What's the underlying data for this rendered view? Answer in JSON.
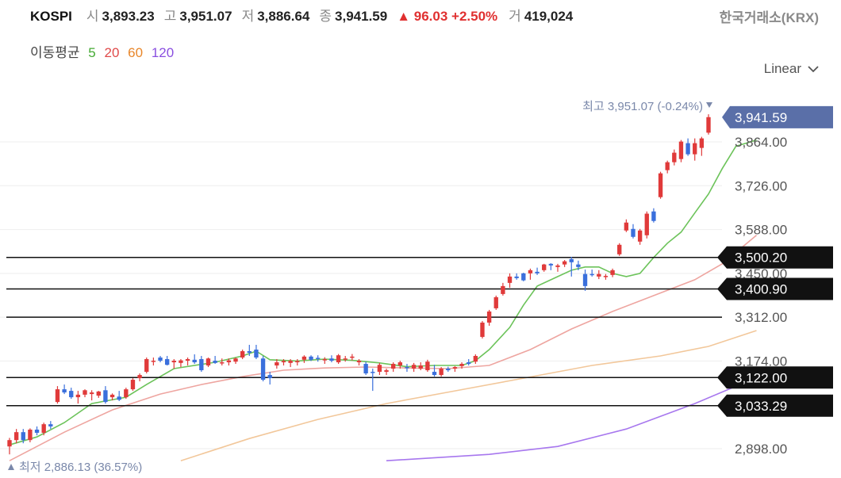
{
  "header": {
    "symbol": "KOSPI",
    "open_label": "시",
    "open": "3,893.23",
    "high_label": "고",
    "high": "3,951.07",
    "low_label": "저",
    "low": "3,886.64",
    "close_label": "종",
    "close": "3,941.59",
    "change": "▲ 96.03 +2.50%",
    "volume_label": "거",
    "volume": "419,024",
    "source": "한국거래소(KRX)"
  },
  "ma_legend": {
    "title": "이동평균",
    "items": [
      {
        "label": "5",
        "color": "#44aa33"
      },
      {
        "label": "20",
        "color": "#e04a4a"
      },
      {
        "label": "60",
        "color": "#e8862a"
      },
      {
        "label": "120",
        "color": "#8a4fe0"
      }
    ]
  },
  "scale_selector": {
    "value": "Linear",
    "icon": "chevron-down-icon"
  },
  "colors": {
    "up": "#e03a3a",
    "down": "#3a6fdc",
    "tag_bg": "#111111",
    "price_tag_bg": "#5a6fa8"
  },
  "chart_data": {
    "type": "candlestick",
    "y_axis": {
      "ticks": [
        "3,864.00",
        "3,726.00",
        "3,588.00",
        "3,450.00",
        "3,312.00",
        "3,174.00",
        "2,898.00"
      ],
      "range": [
        2860,
        3990
      ]
    },
    "current_price": {
      "value": 3941.59,
      "label": "3,941.59"
    },
    "high_annotation": "최고 3,951.07 (-0.24%)",
    "low_annotation": "최저 2,886.13 (36.57%)",
    "horizontal_lines": [
      {
        "value": 3500.2,
        "label": "3,500.20",
        "tag": true
      },
      {
        "value": 3400.9,
        "label": "3,400.90",
        "tag": true
      },
      {
        "value": 3312.0,
        "label": "",
        "tag": false
      },
      {
        "value": 3122.0,
        "label": "3,122.00",
        "tag": true
      },
      {
        "value": 3033.29,
        "label": "3,033.29",
        "tag": true
      }
    ],
    "candles": [
      [
        2905,
        2932,
        2880,
        2925
      ],
      [
        2925,
        2960,
        2915,
        2950
      ],
      [
        2950,
        2960,
        2915,
        2925
      ],
      [
        2925,
        2962,
        2918,
        2958
      ],
      [
        2958,
        2968,
        2940,
        2948
      ],
      [
        2948,
        2980,
        2940,
        2975
      ],
      [
        2975,
        2985,
        2960,
        2968
      ],
      [
        3045,
        3095,
        3040,
        3085
      ],
      [
        3085,
        3100,
        3070,
        3075
      ],
      [
        3080,
        3090,
        3055,
        3060
      ],
      [
        3060,
        3080,
        3040,
        3068
      ],
      [
        3068,
        3085,
        3060,
        3082
      ],
      [
        3070,
        3082,
        3050,
        3075
      ],
      [
        3065,
        3080,
        3058,
        3078
      ],
      [
        3082,
        3095,
        3040,
        3045
      ],
      [
        3060,
        3072,
        3050,
        3068
      ],
      [
        3062,
        3080,
        3048,
        3052
      ],
      [
        3060,
        3090,
        3055,
        3085
      ],
      [
        3085,
        3120,
        3080,
        3115
      ],
      [
        3120,
        3135,
        3110,
        3130
      ],
      [
        3140,
        3185,
        3135,
        3180
      ],
      [
        3175,
        3185,
        3160,
        3175
      ],
      [
        3185,
        3190,
        3170,
        3175
      ],
      [
        3180,
        3190,
        3160,
        3162
      ],
      [
        3170,
        3180,
        3150,
        3175
      ],
      [
        3168,
        3180,
        3155,
        3176
      ],
      [
        3175,
        3185,
        3160,
        3180
      ],
      [
        3178,
        3195,
        3165,
        3170
      ],
      [
        3180,
        3190,
        3140,
        3145
      ],
      [
        3160,
        3185,
        3155,
        3182
      ],
      [
        3175,
        3190,
        3165,
        3168
      ],
      [
        3170,
        3182,
        3160,
        3170
      ],
      [
        3170,
        3182,
        3160,
        3176
      ],
      [
        3172,
        3185,
        3165,
        3182
      ],
      [
        3185,
        3210,
        3180,
        3205
      ],
      [
        3205,
        3225,
        3190,
        3200
      ],
      [
        3210,
        3225,
        3180,
        3185
      ],
      [
        3182,
        3190,
        3110,
        3115
      ],
      [
        3130,
        3140,
        3100,
        3120
      ],
      [
        3160,
        3180,
        3150,
        3170
      ],
      [
        3170,
        3180,
        3160,
        3174
      ],
      [
        3168,
        3180,
        3155,
        3175
      ],
      [
        3170,
        3180,
        3160,
        3174
      ],
      [
        3178,
        3192,
        3168,
        3188
      ],
      [
        3188,
        3192,
        3174,
        3178
      ],
      [
        3184,
        3192,
        3172,
        3182
      ],
      [
        3176,
        3186,
        3165,
        3180
      ],
      [
        3182,
        3192,
        3170,
        3175
      ],
      [
        3170,
        3196,
        3165,
        3192
      ],
      [
        3180,
        3190,
        3172,
        3182
      ],
      [
        3184,
        3196,
        3176,
        3188
      ],
      [
        3170,
        3180,
        3160,
        3175
      ],
      [
        3165,
        3172,
        3130,
        3135
      ],
      [
        3140,
        3150,
        3080,
        3138
      ],
      [
        3140,
        3168,
        3130,
        3162
      ],
      [
        3140,
        3150,
        3130,
        3145
      ],
      [
        3150,
        3170,
        3140,
        3165
      ],
      [
        3160,
        3175,
        3150,
        3170
      ],
      [
        3155,
        3165,
        3140,
        3152
      ],
      [
        3150,
        3168,
        3140,
        3162
      ],
      [
        3150,
        3170,
        3145,
        3160
      ],
      [
        3145,
        3178,
        3140,
        3172
      ],
      [
        3140,
        3162,
        3125,
        3130
      ],
      [
        3130,
        3155,
        3125,
        3150
      ],
      [
        3150,
        3156,
        3140,
        3145
      ],
      [
        3150,
        3158,
        3140,
        3155
      ],
      [
        3158,
        3170,
        3150,
        3165
      ],
      [
        3170,
        3180,
        3160,
        3165
      ],
      [
        3172,
        3195,
        3165,
        3190
      ],
      [
        3250,
        3300,
        3245,
        3295
      ],
      [
        3295,
        3335,
        3285,
        3330
      ],
      [
        3340,
        3380,
        3335,
        3375
      ],
      [
        3385,
        3420,
        3380,
        3410
      ],
      [
        3420,
        3450,
        3405,
        3440
      ],
      [
        3440,
        3450,
        3430,
        3435
      ],
      [
        3450,
        3452,
        3425,
        3428
      ],
      [
        3450,
        3465,
        3430,
        3460
      ],
      [
        3455,
        3468,
        3445,
        3450
      ],
      [
        3460,
        3480,
        3455,
        3478
      ],
      [
        3480,
        3482,
        3460,
        3475
      ],
      [
        3470,
        3480,
        3455,
        3475
      ],
      [
        3478,
        3492,
        3470,
        3488
      ],
      [
        3495,
        3502,
        3440,
        3485
      ],
      [
        3478,
        3490,
        3460,
        3470
      ],
      [
        3448,
        3462,
        3395,
        3410
      ],
      [
        3448,
        3462,
        3440,
        3445
      ],
      [
        3440,
        3460,
        3432,
        3448
      ],
      [
        3440,
        3448,
        3430,
        3442
      ],
      [
        3445,
        3465,
        3438,
        3460
      ],
      [
        3510,
        3545,
        3505,
        3540
      ],
      [
        3585,
        3620,
        3580,
        3610
      ],
      [
        3590,
        3605,
        3560,
        3565
      ],
      [
        3550,
        3590,
        3540,
        3585
      ],
      [
        3570,
        3645,
        3560,
        3638
      ],
      [
        3645,
        3655,
        3610,
        3615
      ],
      [
        3690,
        3770,
        3685,
        3765
      ],
      [
        3775,
        3805,
        3765,
        3800
      ],
      [
        3800,
        3840,
        3790,
        3830
      ],
      [
        3810,
        3870,
        3800,
        3865
      ],
      [
        3860,
        3875,
        3820,
        3825
      ],
      [
        3825,
        3875,
        3805,
        3860
      ],
      [
        3845,
        3880,
        3820,
        3875
      ],
      [
        3893,
        3951,
        3887,
        3942
      ]
    ],
    "ma5": [
      [
        0,
        2910
      ],
      [
        4,
        2935
      ],
      [
        8,
        2980
      ],
      [
        12,
        3040
      ],
      [
        17,
        3060
      ],
      [
        20,
        3100
      ],
      [
        24,
        3150
      ],
      [
        30,
        3170
      ],
      [
        34,
        3190
      ],
      [
        36,
        3205
      ],
      [
        38,
        3178
      ],
      [
        42,
        3174
      ],
      [
        46,
        3180
      ],
      [
        50,
        3176
      ],
      [
        54,
        3168
      ],
      [
        58,
        3156
      ],
      [
        62,
        3160
      ],
      [
        66,
        3160
      ],
      [
        68,
        3175
      ],
      [
        70,
        3210
      ],
      [
        73,
        3280
      ],
      [
        75,
        3350
      ],
      [
        77,
        3410
      ],
      [
        80,
        3440
      ],
      [
        82,
        3460
      ],
      [
        84,
        3470
      ],
      [
        86,
        3470
      ],
      [
        88,
        3450
      ],
      [
        90,
        3440
      ],
      [
        92,
        3450
      ],
      [
        94,
        3500
      ],
      [
        96,
        3545
      ],
      [
        98,
        3580
      ],
      [
        100,
        3640
      ],
      [
        102,
        3700
      ],
      [
        104,
        3780
      ],
      [
        106,
        3850
      ],
      [
        109,
        3870
      ]
    ],
    "ma20": [
      [
        0,
        2860
      ],
      [
        8,
        2950
      ],
      [
        15,
        3020
      ],
      [
        22,
        3070
      ],
      [
        28,
        3100
      ],
      [
        34,
        3125
      ],
      [
        40,
        3145
      ],
      [
        46,
        3152
      ],
      [
        52,
        3155
      ],
      [
        58,
        3152
      ],
      [
        64,
        3150
      ],
      [
        70,
        3160
      ],
      [
        76,
        3210
      ],
      [
        82,
        3275
      ],
      [
        88,
        3330
      ],
      [
        94,
        3380
      ],
      [
        100,
        3430
      ],
      [
        104,
        3480
      ],
      [
        109,
        3570
      ]
    ],
    "ma60": [
      [
        25,
        2860
      ],
      [
        35,
        2930
      ],
      [
        45,
        2990
      ],
      [
        55,
        3040
      ],
      [
        65,
        3080
      ],
      [
        75,
        3120
      ],
      [
        85,
        3160
      ],
      [
        95,
        3190
      ],
      [
        102,
        3220
      ],
      [
        109,
        3270
      ]
    ],
    "ma120": [
      [
        55,
        2860
      ],
      [
        70,
        2880
      ],
      [
        80,
        2905
      ],
      [
        90,
        2960
      ],
      [
        100,
        3040
      ],
      [
        109,
        3122
      ]
    ]
  }
}
